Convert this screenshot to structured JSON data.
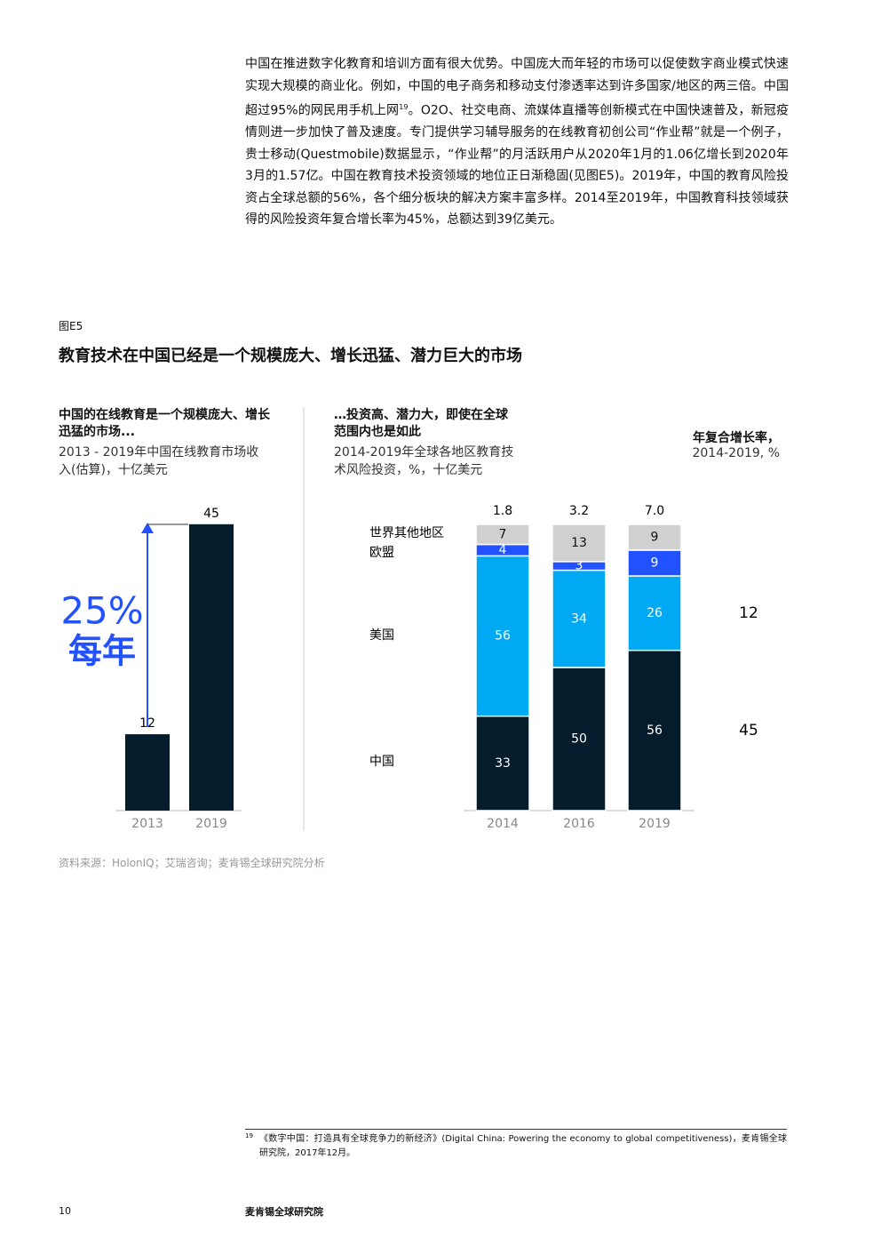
{
  "body_text": [
    "中国在推进数字化教育和培训方面有很大优势。中国庞大而年轻的市场可以促使数字商业模式快速实现大规模的商业化。例如，中国的电子商务和移动支付渗透率达到许多国家/地区的两三倍。中国超过95%的网民用手机上网",
    "19",
    "。O2O、社交电商、流媒体直播等创新模式在中国快速普及，新冠疫情则进一步加快了普及速度。专门提供学习辅导服务的在线教育初创公司“作业帮”就是一个例子，贵士移动(Questmobile)数据显示，“作业帮”的月活跃用户从2020年1月的1.06亿增长到2020年3月的1.57亿。中国在教育技术投资领域的地位正日渐稳固(见图E5)。2019年，中国的教育风险投资占全球总额的56%，各个细分板块的解决方案丰富多样。2014至2019年，中国教育科技领域获得的风险投资年复合增长率为45%，总额达到39亿美元。"
  ],
  "figure_label": "图E5",
  "figure_title": "教育技术在中国已经是一个规模庞大、增长迅猛、潜力巨大的市场",
  "chart_data": [
    {
      "type": "bar",
      "title": "中国的在线教育是一个规模庞大、增长迅猛的市场...",
      "subtitle": "2013 - 2019年中国在线教育市场收入(估算)，十亿美元",
      "categories": [
        "2013",
        "2019"
      ],
      "values": [
        12,
        45
      ],
      "color": "#051c2c",
      "annotation": [
        "25%",
        "每年"
      ],
      "annotation_color": "#2251ff"
    },
    {
      "type": "stacked-bar",
      "title": "…投资高、潜力大，即使在全球范围内也是如此",
      "subtitle": "2014-2019年全球各地区教育技术风险投资，%，十亿美元",
      "categories": [
        "2014",
        "2016",
        "2019"
      ],
      "totals": {
        "values": [
          1.8,
          3.2,
          7
        ],
        "value_labels": [
          "1.8",
          "3.2",
          "7.0"
        ]
      },
      "cagr_title": "年复合增长率，",
      "cagr_subtitle": "2014-2019, %",
      "series": [
        {
          "name": "中国",
          "color": "#051c2c",
          "values": [
            33,
            50,
            56
          ],
          "cagr": 45
        },
        {
          "name": "美国",
          "color": "#00a9f4",
          "values": [
            56,
            34,
            26
          ],
          "cagr": 12
        },
        {
          "name": "欧盟",
          "color": "#2251ff",
          "values": [
            4,
            3,
            9
          ]
        },
        {
          "name": "世界其他地区",
          "color": "#d0d0d0",
          "values": [
            7,
            13,
            9
          ]
        }
      ]
    }
  ],
  "source": "资料来源：HolonIQ；艾瑞咨询；麦肯锡全球研究院分析",
  "footnote": {
    "number": "19",
    "text": "《数字中国：打造具有全球竞争力的新经济》(Digital China: Powering the economy to global competitiveness)，麦肯锡全球研究院，2017年12月。"
  },
  "page_number": "10",
  "footer": "麦肯锡全球研究院"
}
